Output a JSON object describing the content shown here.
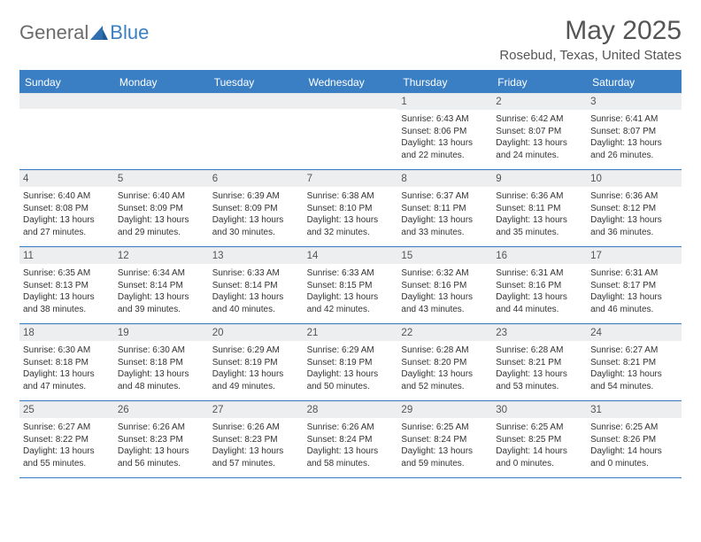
{
  "brand": {
    "text1": "General",
    "text2": "Blue",
    "icon_color": "#2f6fb0"
  },
  "title": "May 2025",
  "location": "Rosebud, Texas, United States",
  "colors": {
    "header_bar": "#3a7fc4",
    "daynum_bg": "#eceef0",
    "text": "#555555",
    "body_text": "#333333",
    "border": "#3a7fc4"
  },
  "days_of_week": [
    "Sunday",
    "Monday",
    "Tuesday",
    "Wednesday",
    "Thursday",
    "Friday",
    "Saturday"
  ],
  "weeks": [
    [
      {
        "n": "",
        "sr": "",
        "ss": "",
        "dl": ""
      },
      {
        "n": "",
        "sr": "",
        "ss": "",
        "dl": ""
      },
      {
        "n": "",
        "sr": "",
        "ss": "",
        "dl": ""
      },
      {
        "n": "",
        "sr": "",
        "ss": "",
        "dl": ""
      },
      {
        "n": "1",
        "sr": "Sunrise: 6:43 AM",
        "ss": "Sunset: 8:06 PM",
        "dl": "Daylight: 13 hours and 22 minutes."
      },
      {
        "n": "2",
        "sr": "Sunrise: 6:42 AM",
        "ss": "Sunset: 8:07 PM",
        "dl": "Daylight: 13 hours and 24 minutes."
      },
      {
        "n": "3",
        "sr": "Sunrise: 6:41 AM",
        "ss": "Sunset: 8:07 PM",
        "dl": "Daylight: 13 hours and 26 minutes."
      }
    ],
    [
      {
        "n": "4",
        "sr": "Sunrise: 6:40 AM",
        "ss": "Sunset: 8:08 PM",
        "dl": "Daylight: 13 hours and 27 minutes."
      },
      {
        "n": "5",
        "sr": "Sunrise: 6:40 AM",
        "ss": "Sunset: 8:09 PM",
        "dl": "Daylight: 13 hours and 29 minutes."
      },
      {
        "n": "6",
        "sr": "Sunrise: 6:39 AM",
        "ss": "Sunset: 8:09 PM",
        "dl": "Daylight: 13 hours and 30 minutes."
      },
      {
        "n": "7",
        "sr": "Sunrise: 6:38 AM",
        "ss": "Sunset: 8:10 PM",
        "dl": "Daylight: 13 hours and 32 minutes."
      },
      {
        "n": "8",
        "sr": "Sunrise: 6:37 AM",
        "ss": "Sunset: 8:11 PM",
        "dl": "Daylight: 13 hours and 33 minutes."
      },
      {
        "n": "9",
        "sr": "Sunrise: 6:36 AM",
        "ss": "Sunset: 8:11 PM",
        "dl": "Daylight: 13 hours and 35 minutes."
      },
      {
        "n": "10",
        "sr": "Sunrise: 6:36 AM",
        "ss": "Sunset: 8:12 PM",
        "dl": "Daylight: 13 hours and 36 minutes."
      }
    ],
    [
      {
        "n": "11",
        "sr": "Sunrise: 6:35 AM",
        "ss": "Sunset: 8:13 PM",
        "dl": "Daylight: 13 hours and 38 minutes."
      },
      {
        "n": "12",
        "sr": "Sunrise: 6:34 AM",
        "ss": "Sunset: 8:14 PM",
        "dl": "Daylight: 13 hours and 39 minutes."
      },
      {
        "n": "13",
        "sr": "Sunrise: 6:33 AM",
        "ss": "Sunset: 8:14 PM",
        "dl": "Daylight: 13 hours and 40 minutes."
      },
      {
        "n": "14",
        "sr": "Sunrise: 6:33 AM",
        "ss": "Sunset: 8:15 PM",
        "dl": "Daylight: 13 hours and 42 minutes."
      },
      {
        "n": "15",
        "sr": "Sunrise: 6:32 AM",
        "ss": "Sunset: 8:16 PM",
        "dl": "Daylight: 13 hours and 43 minutes."
      },
      {
        "n": "16",
        "sr": "Sunrise: 6:31 AM",
        "ss": "Sunset: 8:16 PM",
        "dl": "Daylight: 13 hours and 44 minutes."
      },
      {
        "n": "17",
        "sr": "Sunrise: 6:31 AM",
        "ss": "Sunset: 8:17 PM",
        "dl": "Daylight: 13 hours and 46 minutes."
      }
    ],
    [
      {
        "n": "18",
        "sr": "Sunrise: 6:30 AM",
        "ss": "Sunset: 8:18 PM",
        "dl": "Daylight: 13 hours and 47 minutes."
      },
      {
        "n": "19",
        "sr": "Sunrise: 6:30 AM",
        "ss": "Sunset: 8:18 PM",
        "dl": "Daylight: 13 hours and 48 minutes."
      },
      {
        "n": "20",
        "sr": "Sunrise: 6:29 AM",
        "ss": "Sunset: 8:19 PM",
        "dl": "Daylight: 13 hours and 49 minutes."
      },
      {
        "n": "21",
        "sr": "Sunrise: 6:29 AM",
        "ss": "Sunset: 8:19 PM",
        "dl": "Daylight: 13 hours and 50 minutes."
      },
      {
        "n": "22",
        "sr": "Sunrise: 6:28 AM",
        "ss": "Sunset: 8:20 PM",
        "dl": "Daylight: 13 hours and 52 minutes."
      },
      {
        "n": "23",
        "sr": "Sunrise: 6:28 AM",
        "ss": "Sunset: 8:21 PM",
        "dl": "Daylight: 13 hours and 53 minutes."
      },
      {
        "n": "24",
        "sr": "Sunrise: 6:27 AM",
        "ss": "Sunset: 8:21 PM",
        "dl": "Daylight: 13 hours and 54 minutes."
      }
    ],
    [
      {
        "n": "25",
        "sr": "Sunrise: 6:27 AM",
        "ss": "Sunset: 8:22 PM",
        "dl": "Daylight: 13 hours and 55 minutes."
      },
      {
        "n": "26",
        "sr": "Sunrise: 6:26 AM",
        "ss": "Sunset: 8:23 PM",
        "dl": "Daylight: 13 hours and 56 minutes."
      },
      {
        "n": "27",
        "sr": "Sunrise: 6:26 AM",
        "ss": "Sunset: 8:23 PM",
        "dl": "Daylight: 13 hours and 57 minutes."
      },
      {
        "n": "28",
        "sr": "Sunrise: 6:26 AM",
        "ss": "Sunset: 8:24 PM",
        "dl": "Daylight: 13 hours and 58 minutes."
      },
      {
        "n": "29",
        "sr": "Sunrise: 6:25 AM",
        "ss": "Sunset: 8:24 PM",
        "dl": "Daylight: 13 hours and 59 minutes."
      },
      {
        "n": "30",
        "sr": "Sunrise: 6:25 AM",
        "ss": "Sunset: 8:25 PM",
        "dl": "Daylight: 14 hours and 0 minutes."
      },
      {
        "n": "31",
        "sr": "Sunrise: 6:25 AM",
        "ss": "Sunset: 8:26 PM",
        "dl": "Daylight: 14 hours and 0 minutes."
      }
    ]
  ]
}
